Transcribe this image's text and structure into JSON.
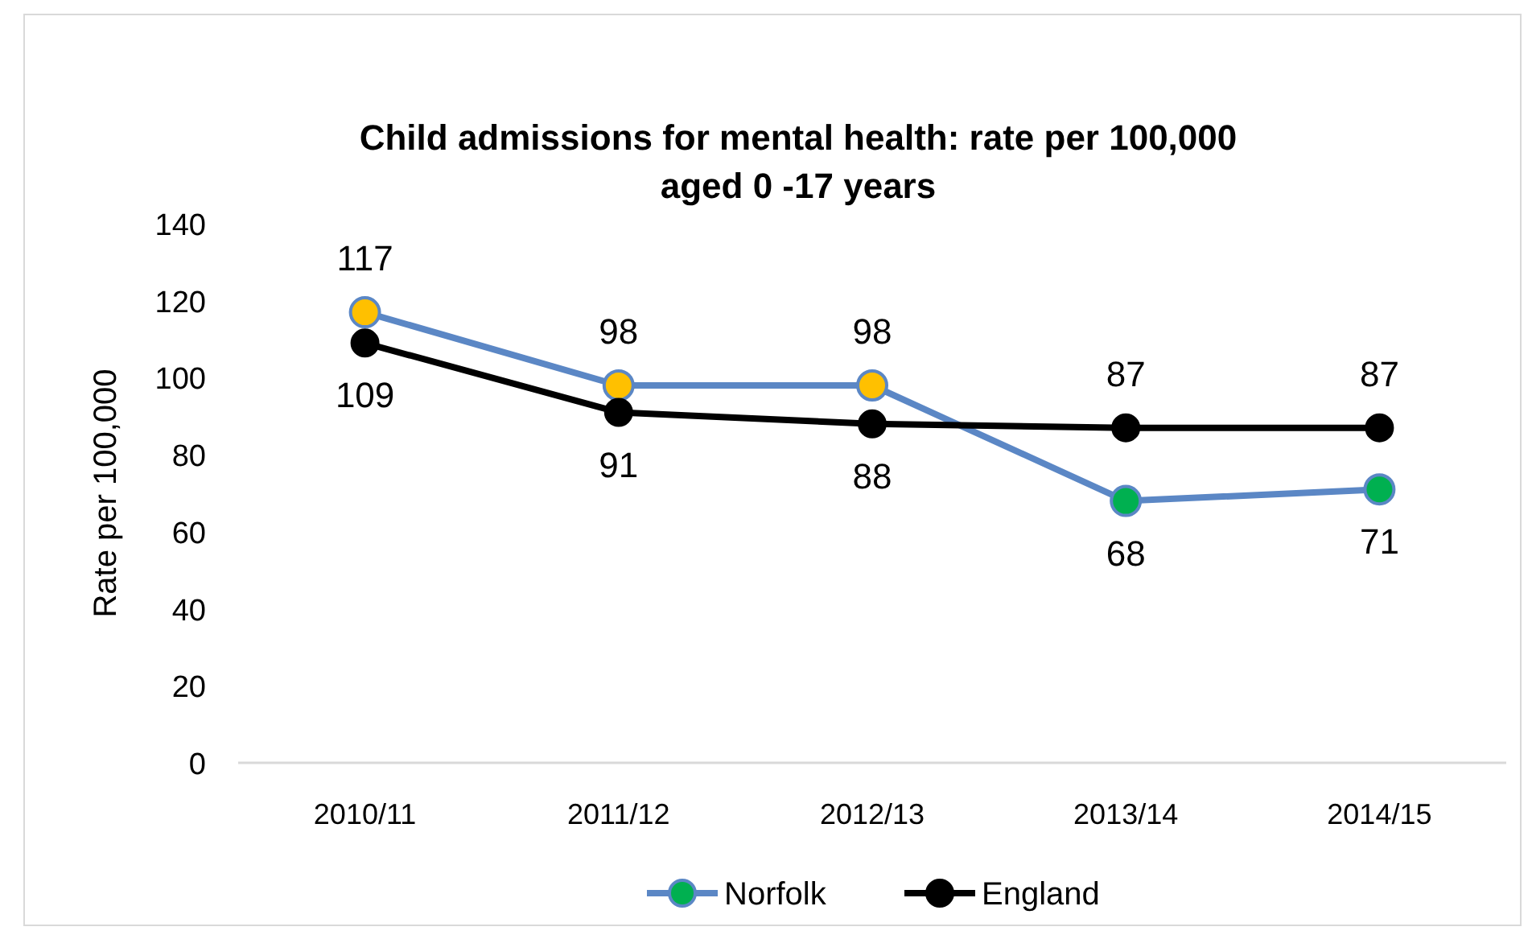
{
  "chart_data": {
    "type": "line",
    "title": "Child admissions for mental health: rate per 100,000 aged 0 -17 years",
    "ylabel": "Rate per 100,000",
    "categories": [
      "2010/11",
      "2011/12",
      "2012/13",
      "2013/14",
      "2014/15"
    ],
    "series": [
      {
        "name": "Norfolk",
        "color": "#5b87c5",
        "colors": [
          "#ffc000",
          "#ffc000",
          "#ffc000",
          "#00b050",
          "#00b050"
        ],
        "values": [
          117,
          98,
          98,
          68,
          71
        ]
      },
      {
        "name": "England",
        "color": "#000000",
        "values": [
          109,
          91,
          88,
          87,
          87
        ]
      }
    ],
    "ylim": [
      0,
      140
    ],
    "yticks": [
      0,
      20,
      40,
      60,
      80,
      100,
      120,
      140
    ],
    "data_labels": true,
    "legend": "bottom",
    "marker": "circle",
    "line_style": "solid"
  }
}
